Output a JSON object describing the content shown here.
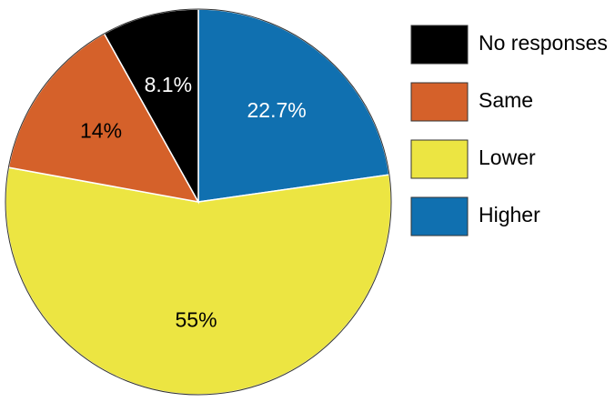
{
  "chart_data": {
    "type": "pie",
    "slices": [
      {
        "label": "Higher",
        "value": 22.7,
        "display": "22.7%",
        "color": "#1070b0",
        "label_color": "#ffffff"
      },
      {
        "label": "Lower",
        "value": 55,
        "display": "55%",
        "color": "#ece542",
        "label_color": "#000000"
      },
      {
        "label": "Same",
        "value": 14,
        "display": "14%",
        "color": "#d5612a",
        "label_color": "#000000"
      },
      {
        "label": "No responses",
        "value": 8.1,
        "display": "8.1%",
        "color": "#000000",
        "label_color": "#ffffff"
      }
    ],
    "start_angle_deg": 0,
    "direction": "clockwise",
    "legend": {
      "position": "right",
      "order": [
        "No responses",
        "Same",
        "Lower",
        "Higher"
      ]
    }
  }
}
